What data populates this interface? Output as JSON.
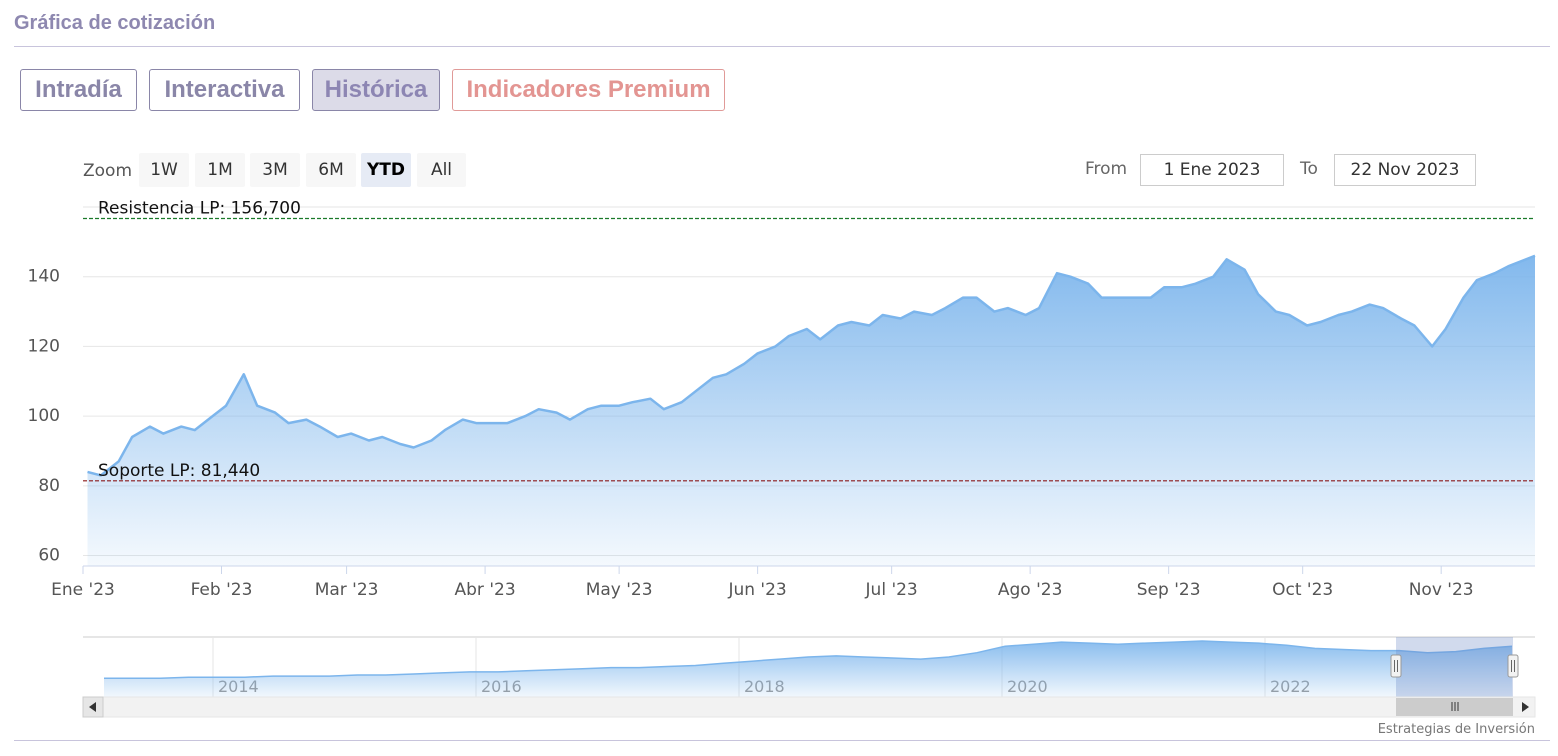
{
  "page": {
    "title": "Gráfica de cotización"
  },
  "tabs": [
    {
      "label": "Intradía",
      "active": false
    },
    {
      "label": "Interactiva",
      "active": false
    },
    {
      "label": "Histórica",
      "active": true
    },
    {
      "label": "Indicadores Premium",
      "active": false
    }
  ],
  "zoom": {
    "label": "Zoom",
    "buttons": [
      "1W",
      "1M",
      "3M",
      "6M",
      "YTD",
      "All"
    ],
    "selected": "YTD"
  },
  "range": {
    "from_label": "From",
    "from_value": "1 Ene 2023",
    "to_label": "To",
    "to_value": "22 Nov 2023"
  },
  "colors": {
    "series_line": "#7cb5ec",
    "resistance": "#1a7a2a",
    "support": "#8b1a1a",
    "tab_border": "#8a86a8",
    "premium": "#e39592"
  },
  "chart_data": {
    "type": "area",
    "x_tick_labels": [
      "Ene '23",
      "Feb '23",
      "Mar '23",
      "Abr '23",
      "May '23",
      "Jun '23",
      "Jul '23",
      "Ago '23",
      "Sep '23",
      "Oct '23",
      "Nov '23"
    ],
    "y_ticks": [
      60,
      80,
      100,
      120,
      140
    ],
    "ylim": [
      57,
      160
    ],
    "xlim": [
      "2023-01-01",
      "2023-11-22"
    ],
    "grid": true,
    "series": [
      {
        "x": [
          "2023-01-02",
          "2023-01-05",
          "2023-01-09",
          "2023-01-12",
          "2023-01-16",
          "2023-01-19",
          "2023-01-23",
          "2023-01-26",
          "2023-01-30",
          "2023-02-02",
          "2023-02-06",
          "2023-02-09",
          "2023-02-13",
          "2023-02-16",
          "2023-02-20",
          "2023-02-23",
          "2023-02-27",
          "2023-03-02",
          "2023-03-06",
          "2023-03-09",
          "2023-03-13",
          "2023-03-16",
          "2023-03-20",
          "2023-03-23",
          "2023-03-27",
          "2023-03-30",
          "2023-04-03",
          "2023-04-06",
          "2023-04-10",
          "2023-04-13",
          "2023-04-17",
          "2023-04-20",
          "2023-04-24",
          "2023-04-27",
          "2023-05-01",
          "2023-05-04",
          "2023-05-08",
          "2023-05-11",
          "2023-05-15",
          "2023-05-18",
          "2023-05-22",
          "2023-05-25",
          "2023-05-29",
          "2023-06-01",
          "2023-06-05",
          "2023-06-08",
          "2023-06-12",
          "2023-06-15",
          "2023-06-19",
          "2023-06-22",
          "2023-06-26",
          "2023-06-29",
          "2023-07-03",
          "2023-07-06",
          "2023-07-10",
          "2023-07-13",
          "2023-07-17",
          "2023-07-20",
          "2023-07-24",
          "2023-07-27",
          "2023-07-31",
          "2023-08-03",
          "2023-08-07",
          "2023-08-10",
          "2023-08-14",
          "2023-08-17",
          "2023-08-21",
          "2023-08-24",
          "2023-08-28",
          "2023-08-31",
          "2023-09-04",
          "2023-09-07",
          "2023-09-11",
          "2023-09-14",
          "2023-09-18",
          "2023-09-21",
          "2023-09-25",
          "2023-09-28",
          "2023-10-02",
          "2023-10-05",
          "2023-10-09",
          "2023-10-12",
          "2023-10-16",
          "2023-10-19",
          "2023-10-23",
          "2023-10-26",
          "2023-10-30",
          "2023-11-02",
          "2023-11-06",
          "2023-11-09",
          "2023-11-13",
          "2023-11-16",
          "2023-11-20",
          "2023-11-22"
        ],
        "values": [
          84,
          83,
          87,
          94,
          97,
          95,
          97,
          96,
          100,
          103,
          112,
          103,
          101,
          98,
          99,
          97,
          94,
          95,
          93,
          94,
          92,
          91,
          93,
          96,
          99,
          98,
          98,
          98,
          100,
          102,
          101,
          99,
          102,
          103,
          103,
          104,
          105,
          102,
          104,
          107,
          111,
          112,
          115,
          118,
          120,
          123,
          125,
          122,
          126,
          127,
          126,
          129,
          128,
          130,
          129,
          131,
          134,
          134,
          130,
          131,
          129,
          131,
          141,
          140,
          138,
          134,
          134,
          134,
          134,
          137,
          137,
          138,
          140,
          145,
          142,
          135,
          130,
          129,
          126,
          127,
          129,
          130,
          132,
          131,
          128,
          126,
          120,
          125,
          134,
          139,
          141,
          143,
          145,
          146
        ]
      }
    ],
    "reference_lines": [
      {
        "label": "Resistencia LP: 156,700",
        "value": 156.7
      },
      {
        "label": "Soporte LP: 81,440",
        "value": 81.44
      }
    ],
    "navigator": {
      "year_labels": [
        "2014",
        "2016",
        "2018",
        "2020",
        "2022"
      ],
      "values": [
        12,
        12,
        12,
        13,
        13,
        13,
        14,
        14,
        14,
        15,
        15,
        16,
        17,
        18,
        18,
        19,
        20,
        21,
        22,
        22,
        23,
        24,
        26,
        28,
        30,
        32,
        33,
        32,
        31,
        30,
        32,
        36,
        42,
        44,
        46,
        45,
        44,
        45,
        46,
        47,
        46,
        45,
        43,
        40,
        39,
        38,
        38,
        36,
        37,
        40,
        42
      ]
    },
    "credit": "Estrategias de Inversión"
  }
}
